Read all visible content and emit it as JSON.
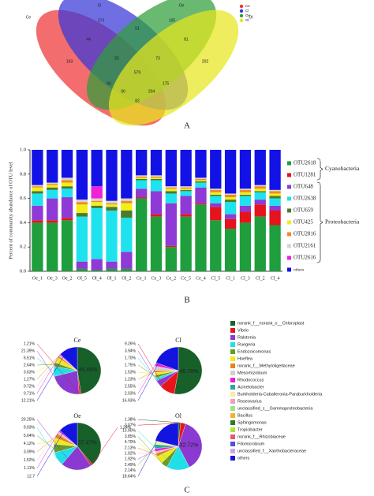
{
  "panels": [
    "A",
    "B",
    "C"
  ],
  "chart_data": [
    {
      "type": "venn",
      "sets": [
        {
          "name": "Ce",
          "color": "#ee3436"
        },
        {
          "name": "Cl",
          "color": "#3838d8"
        },
        {
          "name": "Oe",
          "color": "#2f9e3a"
        },
        {
          "name": "Ol",
          "color": "#e6e61e"
        }
      ],
      "regions": [
        {
          "sets": [
            "Ce"
          ],
          "value": 193
        },
        {
          "sets": [
            "Cl"
          ],
          "value": 373
        },
        {
          "sets": [
            "Oe"
          ],
          "value": 105
        },
        {
          "sets": [
            "Ol"
          ],
          "value": 202
        },
        {
          "sets": [
            "Ce",
            "Cl"
          ],
          "value": 44
        },
        {
          "sets": [
            "Cl",
            "Oe"
          ],
          "value": 51
        },
        {
          "sets": [
            "Oe",
            "Ol"
          ],
          "value": 81
        },
        {
          "sets": [
            "Ce",
            "Ol"
          ],
          "value": 82
        },
        {
          "sets": [
            "Ce",
            "Oe"
          ],
          "value": 66
        },
        {
          "sets": [
            "Cl",
            "Ol"
          ],
          "value": 175
        },
        {
          "sets": [
            "Ce",
            "Cl",
            "Oe"
          ],
          "value": 55
        },
        {
          "sets": [
            "Cl",
            "Oe",
            "Ol"
          ],
          "value": 73
        },
        {
          "sets": [
            "Ce",
            "Oe",
            "Ol"
          ],
          "value": 90
        },
        {
          "sets": [
            "Ce",
            "Cl",
            "Ol"
          ],
          "value": 204
        },
        {
          "sets": [
            "Ce",
            "Cl",
            "Oe",
            "Ol"
          ],
          "value": 579
        }
      ]
    },
    {
      "type": "stacked-bar",
      "y_label": "Percent of community abundance of OTU level",
      "categories": [
        "Oe_1",
        "Oe_3",
        "Oe_2",
        "Ol_5",
        "Ol_4",
        "Ol_1",
        "Ol_2",
        "Ce_1",
        "Ce_3",
        "Ce_2",
        "Ce_5",
        "Ce_4",
        "Cl_5",
        "Cl_1",
        "Cl_3",
        "Cl_2",
        "Cl_4"
      ],
      "ylim": [
        0,
        1
      ],
      "yticks": [
        {
          "value": 0,
          "label": "0.0"
        },
        0.2,
        0.4,
        0.6,
        0.8,
        {
          "value": 1,
          "label": "1.0"
        }
      ],
      "annotations": [
        "Cyanobacteria",
        "Proteobacteria"
      ],
      "series": [
        {
          "name": "OTU2618",
          "color": "#1e9e3c",
          "values": [
            0.4,
            0.4,
            0.42,
            0.02,
            0.01,
            0.02,
            0.02,
            0.6,
            0.45,
            0.2,
            0.45,
            0.55,
            0.42,
            0.35,
            0.4,
            0.45,
            0.38
          ]
        },
        {
          "name": "OTU1281",
          "color": "#e5131b",
          "values": [
            0.02,
            0.02,
            0.02,
            0,
            0,
            0,
            0,
            0.01,
            0.02,
            0.01,
            0.02,
            0.01,
            0.11,
            0.08,
            0.09,
            0.1,
            0.12
          ]
        },
        {
          "name": "OTU648",
          "color": "#8e3ad6",
          "values": [
            0.12,
            0.18,
            0.17,
            0.06,
            0.09,
            0.06,
            0.14,
            0.07,
            0.19,
            0.35,
            0.15,
            0.13,
            0.03,
            0.04,
            0.05,
            0.04,
            0.04
          ]
        },
        {
          "name": "OTU2638",
          "color": "#1ee3ee",
          "values": [
            0.1,
            0.07,
            0.07,
            0.37,
            0.42,
            0.42,
            0.28,
            0.07,
            0.09,
            0.08,
            0.04,
            0.04,
            0.06,
            0.1,
            0.08,
            0.06,
            0.06
          ]
        },
        {
          "name": "OTU659",
          "color": "#4a7a2e",
          "values": [
            0.02,
            0.02,
            0.02,
            0.03,
            0.02,
            0.03,
            0.06,
            0.01,
            0.01,
            0.02,
            0.01,
            0.01,
            0.01,
            0.02,
            0.01,
            0.01,
            0.02
          ]
        },
        {
          "name": "OTU425",
          "color": "#f2ee1a",
          "values": [
            0.03,
            0.02,
            0.03,
            0.07,
            0.03,
            0.02,
            0.06,
            0.01,
            0.01,
            0.02,
            0.01,
            0.01,
            0.02,
            0.02,
            0.02,
            0.02,
            0.02
          ]
        },
        {
          "name": "OTU2816",
          "color": "#f08a24",
          "values": [
            0.01,
            0.01,
            0.02,
            0.02,
            0.01,
            0.01,
            0.02,
            0.01,
            0.01,
            0.01,
            0.01,
            0.01,
            0.02,
            0.02,
            0.02,
            0.02,
            0.02
          ]
        },
        {
          "name": "OTU2161",
          "color": "#d9d4cc",
          "values": [
            0.01,
            0.01,
            0.02,
            0.02,
            0.02,
            0.02,
            0.02,
            0.01,
            0.01,
            0.01,
            0.01,
            0.01,
            0.01,
            0.01,
            0.01,
            0.01,
            0.01
          ]
        },
        {
          "name": "OTU2616",
          "color": "#ee22d8",
          "values": [
            0,
            0,
            0,
            0,
            0.1,
            0,
            0,
            0,
            0,
            0,
            0,
            0,
            0,
            0,
            0,
            0,
            0
          ]
        },
        {
          "name": "others",
          "color": "#1212e6",
          "values": [
            0.29,
            0.27,
            0.23,
            0.41,
            0.3,
            0.42,
            0.4,
            0.21,
            0.21,
            0.3,
            0.3,
            0.23,
            0.32,
            0.36,
            0.32,
            0.29,
            0.33
          ]
        }
      ]
    },
    {
      "type": "pie",
      "categories": [
        "norank_f__norank_o__Chloroplast",
        "Vibrio",
        "Ralstonia",
        "Ruegeria",
        "Endozoicomonas",
        "Hoeflea",
        "norank_f__Methyloligellaceae",
        "Mesorhizobium",
        "Rhodococcus",
        "Acinetobacter",
        "Burkholderia-Caballeronia-Paraburkholderia",
        "Roseovarius",
        "unclassified_c__Gammaproteobacteria",
        "Bacillus",
        "Sphingomonas",
        "Tropicibacter",
        "norank_f__Rhizobiaceae",
        "Filomicrobium",
        "unclassified_f__Xanthobacteraceae",
        "others"
      ],
      "colors": [
        "#17602a",
        "#e8141c",
        "#8a3ad0",
        "#20dfe8",
        "#6a9a2a",
        "#f0ea1a",
        "#e8821e",
        "#cfcfcf",
        "#ea1ed8",
        "#2aa89a",
        "#f5ef9a",
        "#f0a0b8",
        "#9ee08a",
        "#f3b030",
        "#2e7a1c",
        "#a8e83a",
        "#e85a6a",
        "#5a4ae0",
        "#c8a8e8",
        "#1414e0"
      ],
      "series": [
        {
          "name": "Ce",
          "values": [
            45.49,
            1.21,
            21.39,
            6.51,
            2.64,
            3.63,
            1.27,
            0.72,
            0.71,
            null,
            null,
            null,
            null,
            null,
            null,
            null,
            null,
            null,
            null,
            12.21
          ],
          "value_labels": [
            "45.49%",
            "1.21%",
            "21.39%",
            "6.51%",
            "2.64%",
            "3.63%",
            "1.27%",
            "0.72%",
            "0.71%",
            null,
            null,
            null,
            null,
            null,
            null,
            null,
            null,
            null,
            null,
            "12.21%"
          ]
        },
        {
          "name": "Cl",
          "values": [
            45.78,
            9.26,
            3.94,
            1.7,
            1.75,
            1.53,
            1.23,
            2.55,
            2.03,
            null,
            null,
            null,
            null,
            null,
            null,
            null,
            null,
            null,
            null,
            16.93
          ],
          "value_labels": [
            "45.78%",
            "9.26%",
            "3.94%",
            "1.70%",
            "1.75%",
            "1.53%",
            "1.23%",
            "2.55%",
            "2.03%",
            null,
            null,
            null,
            null,
            null,
            null,
            null,
            null,
            null,
            null,
            "16.93%"
          ]
        },
        {
          "name": "Oe",
          "values": [
            37.47,
            1.24,
            20.25,
            9.03,
            5.64,
            4.12,
            3.09,
            1.52,
            1.11,
            null,
            null,
            null,
            null,
            null,
            null,
            null,
            null,
            null,
            null,
            12.7
          ],
          "value_labels": [
            "37.47%",
            "1.24%",
            "20.25%",
            "9.03%",
            "5.64%",
            "4.12%",
            "3.09%",
            "1.52%",
            "1.11%",
            null,
            null,
            null,
            null,
            null,
            null,
            null,
            null,
            null,
            null,
            "12.7"
          ]
        },
        {
          "name": "Ol",
          "values": [
            1.38,
            3.07,
            32.72,
            13.9,
            3.85,
            4.7,
            2.13,
            1.02,
            1.92,
            2.49,
            2.14,
            null,
            null,
            null,
            null,
            null,
            null,
            null,
            null,
            18.64
          ],
          "value_labels": [
            "1.38%",
            "3.07%",
            "32.72%",
            "13.90%",
            "3.85%",
            "4.70%",
            "2.13%",
            "1.02%",
            "1.92%",
            "2.49%",
            "2.14%",
            null,
            null,
            null,
            null,
            null,
            null,
            null,
            null,
            "18.64%"
          ]
        }
      ]
    }
  ]
}
